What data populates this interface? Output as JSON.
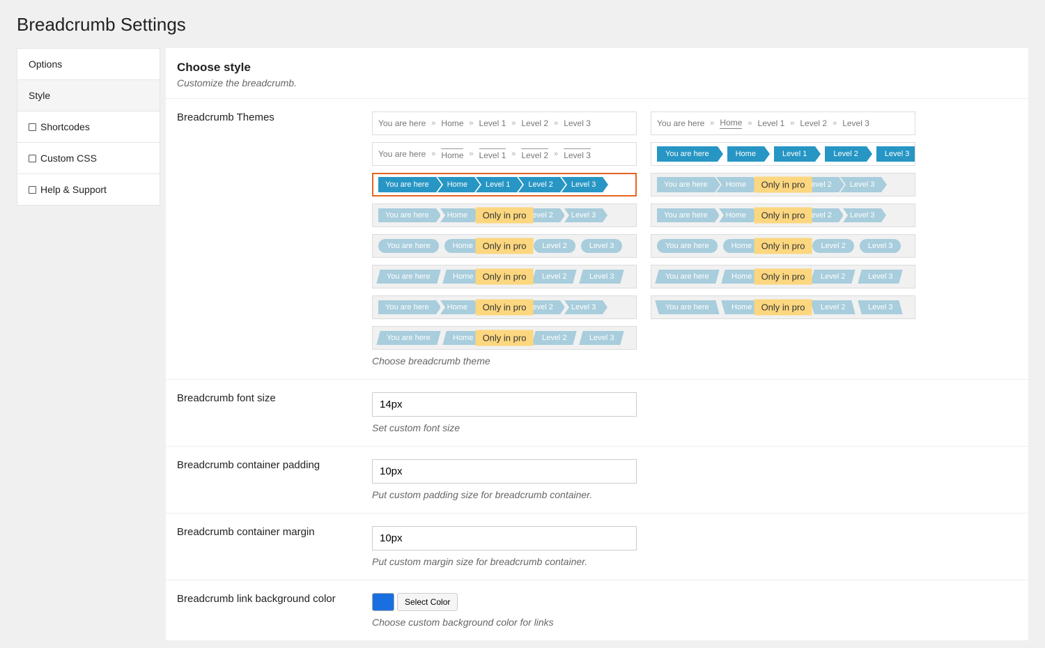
{
  "page": {
    "title": "Breadcrumb Settings"
  },
  "tabs": [
    {
      "label": "Options",
      "active": true,
      "icon": false
    },
    {
      "label": "Style",
      "active": false,
      "icon": false
    },
    {
      "label": "Shortcodes",
      "active": true,
      "icon": true
    },
    {
      "label": "Custom CSS",
      "active": true,
      "icon": true
    },
    {
      "label": "Help & Support",
      "active": true,
      "icon": true
    }
  ],
  "section": {
    "title": "Choose style",
    "sub": "Customize the breadcrumb."
  },
  "themes": {
    "label": "Breadcrumb Themes",
    "hint": "Choose breadcrumb theme",
    "pro_label": "Only in pro",
    "crumb_labels": [
      "You are here",
      "Home",
      "Level 1",
      "Level 2",
      "Level 3"
    ],
    "separator": "»",
    "selected_index": 4,
    "colors": {
      "active": "#2796c4",
      "faded": "#a8cddc",
      "selected_border": "#e6641f",
      "pro_badge": "#fcd77f",
      "text_muted": "#777777"
    },
    "grid": [
      {
        "style": "text-sep",
        "pro": false
      },
      {
        "style": "text-sep-underline",
        "pro": false
      },
      {
        "style": "text-sep-tabline",
        "pro": false
      },
      {
        "style": "block-arrow-gap",
        "pro": false
      },
      {
        "style": "arrow-seg",
        "pro": false,
        "selected": true
      },
      {
        "style": "arrow-seg-faded",
        "pro": true
      },
      {
        "style": "rectnotch-faded",
        "pro": true
      },
      {
        "style": "rectnotch-faded",
        "pro": true
      },
      {
        "style": "pill-faded",
        "pro": true
      },
      {
        "style": "pill-faded",
        "pro": true
      },
      {
        "style": "slant-fwd-faded",
        "pro": true
      },
      {
        "style": "slant-fwd-faded",
        "pro": true
      },
      {
        "style": "rectnotch-faded",
        "pro": true
      },
      {
        "style": "slant-back-faded",
        "pro": true
      },
      {
        "style": "slant-fwd-faded",
        "pro": true
      }
    ]
  },
  "fields": {
    "font_size": {
      "label": "Breadcrumb font size",
      "value": "14px",
      "hint": "Set custom font size"
    },
    "padding": {
      "label": "Breadcrumb container padding",
      "value": "10px",
      "hint": "Put custom padding size for breadcrumb container."
    },
    "margin": {
      "label": "Breadcrumb container margin",
      "value": "10px",
      "hint": "Put custom margin size for breadcrumb container."
    },
    "link_bg": {
      "label": "Breadcrumb link background color",
      "value": "#1a6fe0",
      "button": "Select Color",
      "hint": "Choose custom background color for links"
    }
  }
}
